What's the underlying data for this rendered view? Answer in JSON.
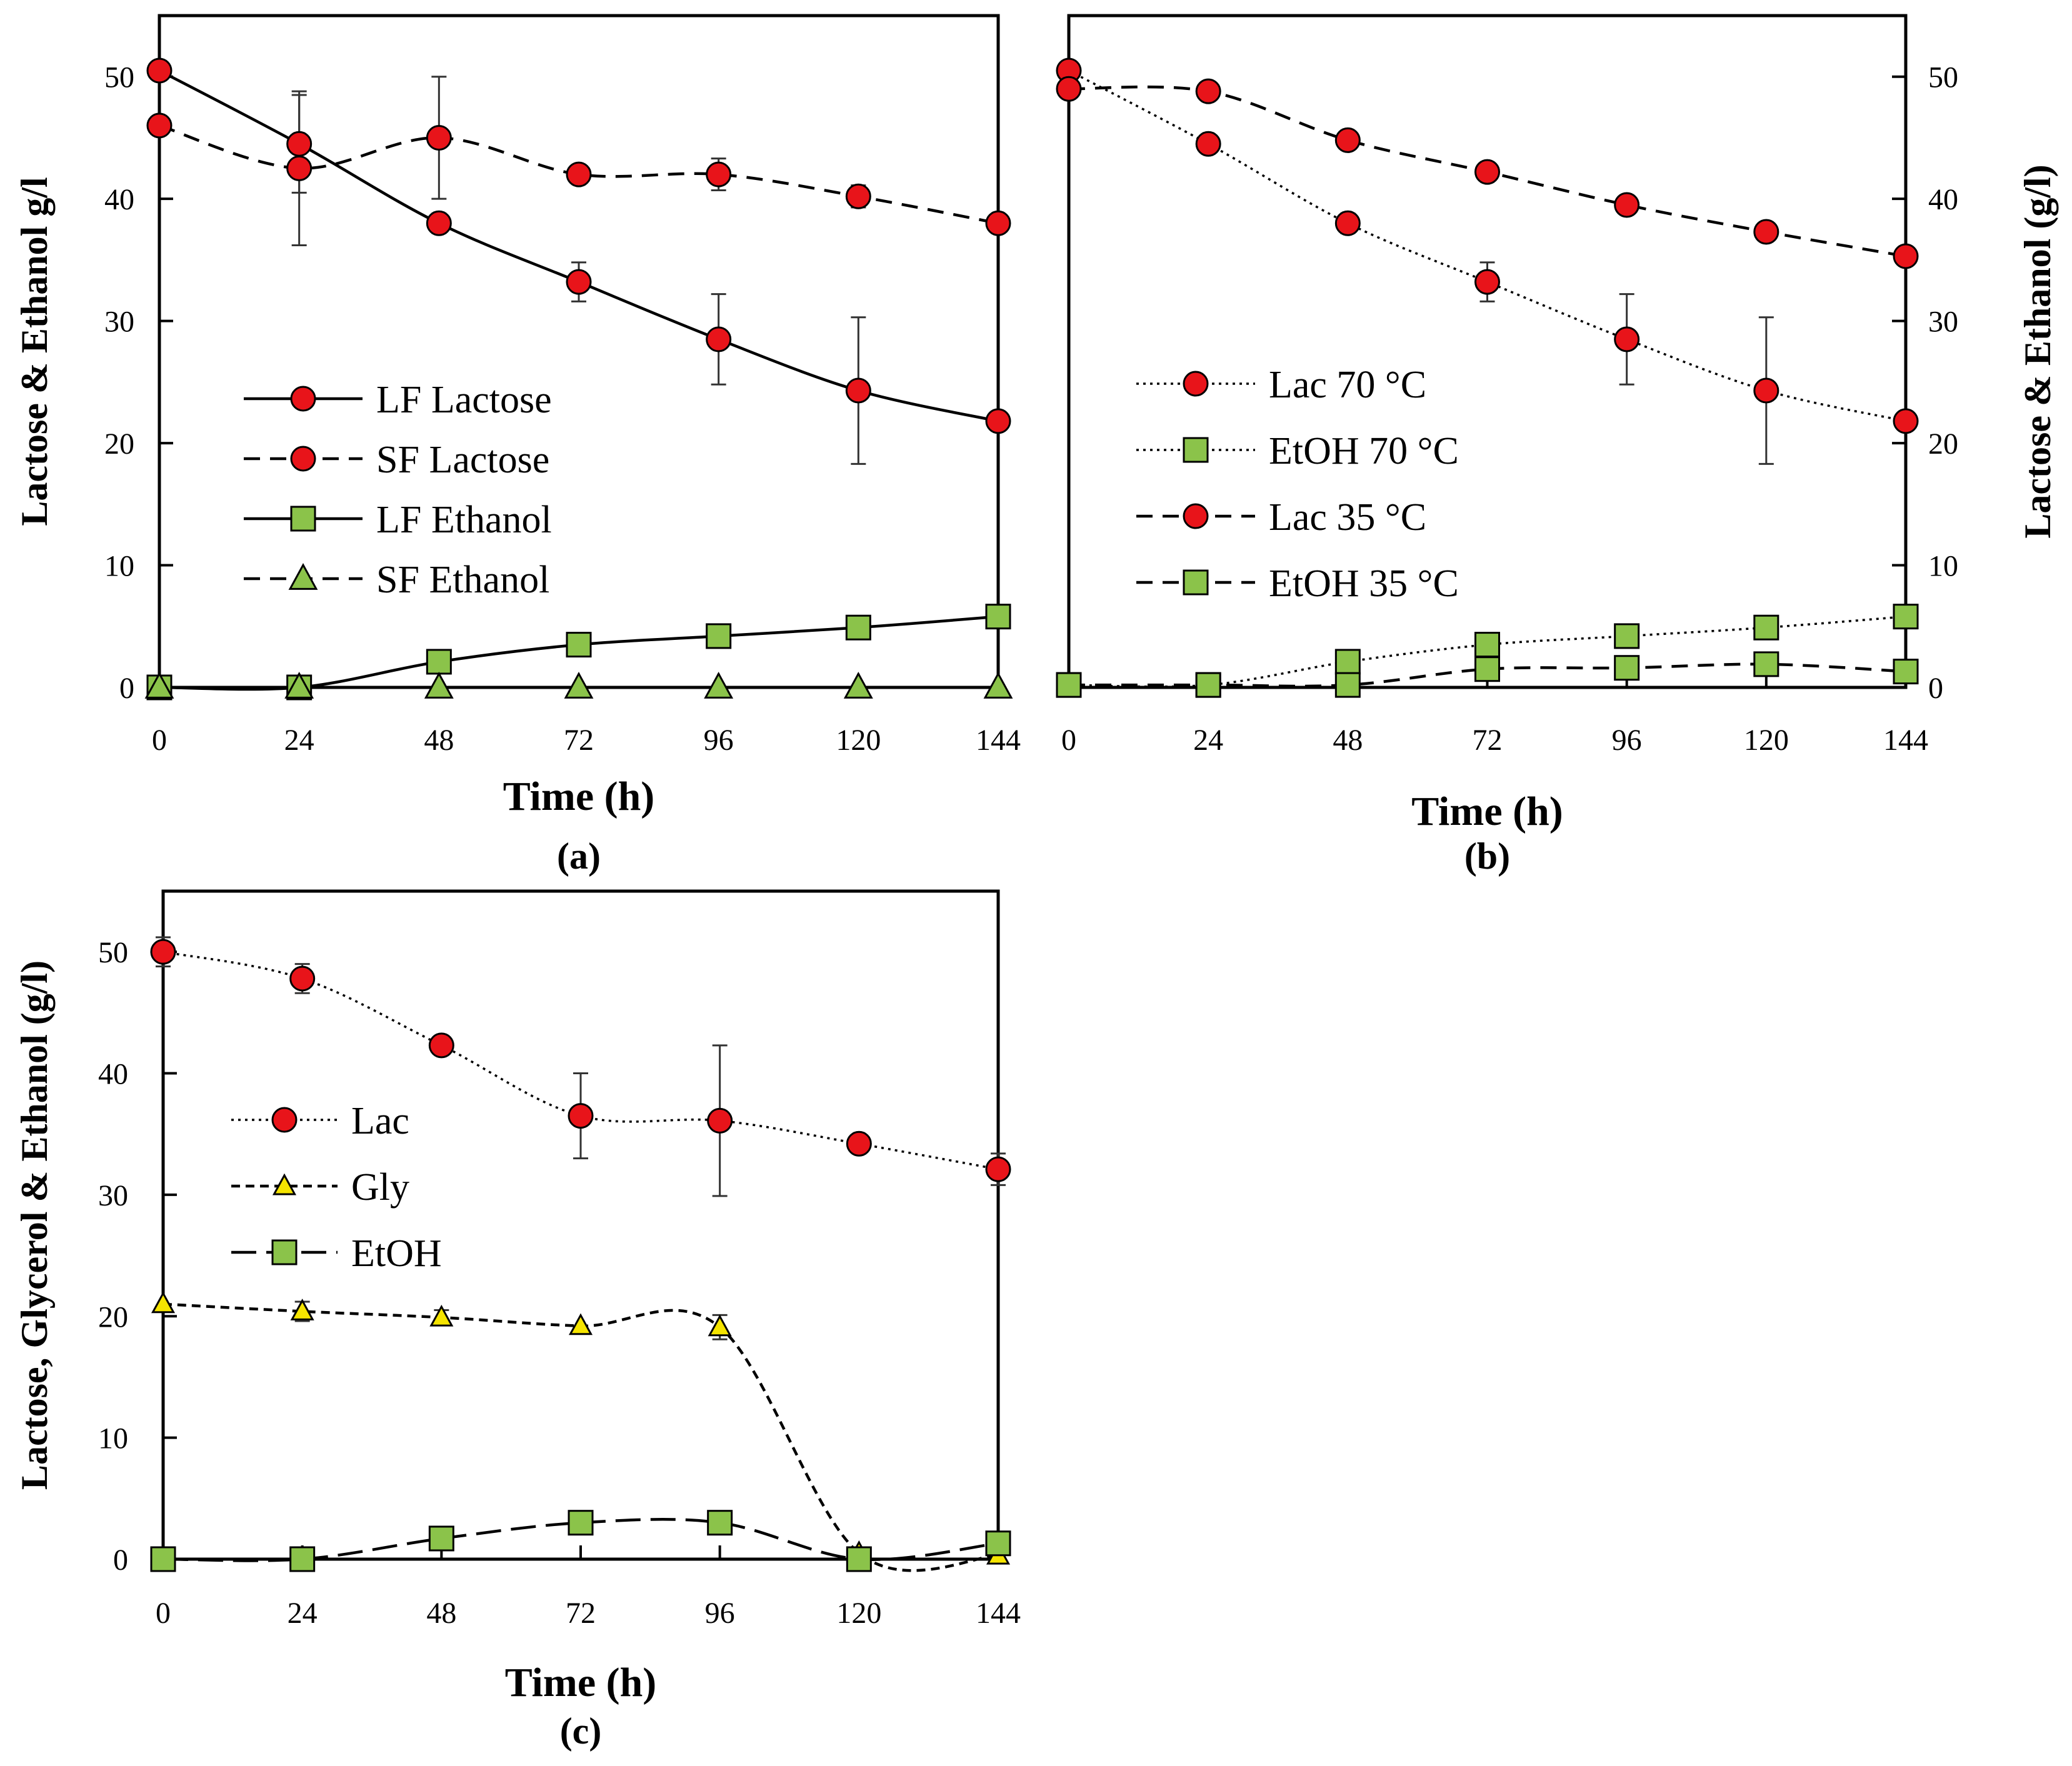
{
  "chart_data": [
    {
      "panel": "(a)",
      "type": "line",
      "title": "",
      "xlabel": "Time (h)",
      "ylabel": "Lactose & Ethanol g/l",
      "y_axis_side": "left",
      "caption": "(a)",
      "xlim": [
        0,
        144
      ],
      "ylim": [
        0,
        55
      ],
      "xticks": [
        0,
        24,
        48,
        72,
        96,
        120,
        144
      ],
      "yticks": [
        0,
        10,
        20,
        30,
        40,
        50
      ],
      "legend_position": "center-left",
      "x": [
        0,
        24,
        48,
        72,
        96,
        120,
        144
      ],
      "series": [
        {
          "name": "LF Lactose",
          "line": "solid",
          "marker": "circle",
          "color": "#e8141a",
          "values": [
            50.5,
            44.5,
            38,
            33.2,
            28.5,
            24.3,
            21.8
          ],
          "errors": [
            0,
            4,
            0.8,
            1.6,
            3.7,
            6,
            0
          ]
        },
        {
          "name": "SF Lactose",
          "line": "dashed",
          "marker": "circle",
          "color": "#e8141a",
          "values": [
            46,
            42.5,
            45,
            42,
            42,
            40.2,
            38
          ],
          "errors": [
            0,
            6.3,
            5,
            0,
            1.3,
            0.9,
            0
          ]
        },
        {
          "name": "LF Ethanol",
          "line": "solid",
          "marker": "square",
          "color": "#8bc34a",
          "values": [
            0,
            0,
            2.1,
            3.5,
            4.2,
            4.9,
            5.8
          ],
          "errors": [
            0,
            0,
            0,
            0,
            0,
            0,
            0
          ]
        },
        {
          "name": "SF Ethanol",
          "line": "dashed",
          "marker": "triangle",
          "color": "#8bc34a",
          "values": [
            0,
            0,
            0,
            0,
            0,
            0,
            0
          ],
          "errors": [
            0,
            0,
            0,
            0,
            0,
            0,
            0
          ]
        }
      ]
    },
    {
      "panel": "(b)",
      "type": "line",
      "title": "",
      "xlabel": "Time (h)",
      "ylabel": "Lactose & Ethanol (g/l)",
      "y_axis_side": "right",
      "caption": "(b)",
      "xlim": [
        0,
        144
      ],
      "ylim": [
        0,
        55
      ],
      "xticks": [
        0,
        24,
        48,
        72,
        96,
        120,
        144
      ],
      "yticks": [
        0,
        10,
        20,
        30,
        40,
        50
      ],
      "legend_position": "center-left",
      "x": [
        0,
        24,
        48,
        72,
        96,
        120,
        144
      ],
      "series": [
        {
          "name": "Lac 70 °C",
          "line": "dotted",
          "marker": "circle",
          "color": "#e8141a",
          "values": [
            50.5,
            44.5,
            38,
            33.2,
            28.5,
            24.3,
            21.8
          ],
          "errors": [
            0,
            0,
            0.8,
            1.6,
            3.7,
            6,
            0
          ]
        },
        {
          "name": "EtOH 70 °C",
          "line": "dotted",
          "marker": "square",
          "color": "#8bc34a",
          "values": [
            0.2,
            0.2,
            2.1,
            3.5,
            4.2,
            4.9,
            5.8
          ],
          "errors": [
            0,
            0,
            0,
            0,
            0,
            0,
            0
          ]
        },
        {
          "name": "Lac 35 °C",
          "line": "dashed",
          "marker": "circle",
          "color": "#e8141a",
          "values": [
            49,
            48.8,
            44.8,
            42.2,
            39.5,
            37.3,
            35.3
          ],
          "errors": [
            0,
            0,
            0,
            0,
            0,
            0.6,
            0
          ]
        },
        {
          "name": "EtOH 35 °C",
          "line": "dashed",
          "marker": "square",
          "color": "#8bc34a",
          "values": [
            0.2,
            0.2,
            0.2,
            1.5,
            1.6,
            1.9,
            1.3
          ],
          "errors": [
            0,
            0,
            0,
            0,
            0,
            0,
            0
          ]
        }
      ]
    },
    {
      "panel": "(c)",
      "type": "line",
      "title": "",
      "xlabel": "Time (h)",
      "ylabel": "Lactose, Glycerol & Ethanol (g/l)",
      "y_axis_side": "left",
      "caption": "(c)",
      "xlim": [
        0,
        144
      ],
      "ylim": [
        0,
        55
      ],
      "xticks": [
        0,
        24,
        48,
        72,
        96,
        120,
        144
      ],
      "yticks": [
        0,
        10,
        20,
        30,
        40,
        50
      ],
      "legend_position": "center-left",
      "x": [
        0,
        24,
        48,
        72,
        96,
        120,
        144
      ],
      "series": [
        {
          "name": "Lac",
          "line": "dotted",
          "marker": "circle",
          "color": "#e8141a",
          "values": [
            50,
            47.8,
            42.3,
            36.5,
            36.1,
            34.2,
            32.1
          ],
          "errors": [
            1.2,
            1.2,
            0,
            3.5,
            6.2,
            0,
            1.3
          ]
        },
        {
          "name": "Gly",
          "line": "dashed-short",
          "marker": "triangle",
          "color": "#f5e400",
          "values": [
            21,
            20.4,
            19.9,
            19.2,
            19.1,
            0.5,
            0.3
          ],
          "errors": [
            0,
            0.8,
            0.6,
            0,
            1,
            0,
            0
          ]
        },
        {
          "name": "EtOH",
          "line": "dashed-long",
          "marker": "square",
          "color": "#8bc34a",
          "values": [
            0,
            0,
            1.7,
            3,
            3,
            0,
            1.3
          ],
          "errors": [
            0,
            0,
            0,
            0,
            0,
            0,
            0
          ]
        }
      ]
    }
  ]
}
